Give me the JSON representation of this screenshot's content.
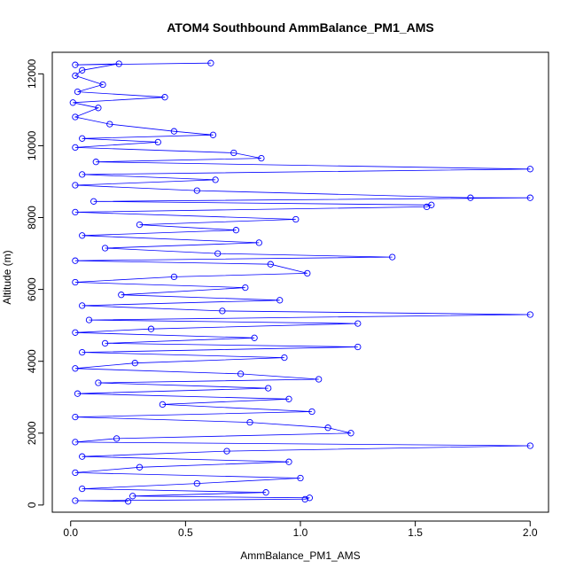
{
  "chart_data": {
    "type": "scatter",
    "title": "ATOM4 Southbound AmmBalance_PM1_AMS",
    "xlabel": "AmmBalance_PM1_AMS",
    "ylabel": "Altitude (m)",
    "xlim": [
      -0.08,
      2.08
    ],
    "ylim": [
      -200,
      12600
    ],
    "x_ticks": [
      0,
      0.5,
      1,
      1.5,
      2
    ],
    "x_tick_labels": [
      "0.0",
      "0.5",
      "1.0",
      "1.5",
      "2.0"
    ],
    "y_ticks": [
      0,
      2000,
      4000,
      6000,
      8000,
      10000,
      12000
    ],
    "y_tick_labels": [
      "0",
      "2000",
      "4000",
      "6000",
      "8000",
      "10000",
      "12000"
    ],
    "marker": "open-circle",
    "connected": true,
    "series_color": "#0000ff",
    "grid": false,
    "series": [
      {
        "points": [
          [
            0.61,
            12300
          ],
          [
            0.02,
            12250
          ],
          [
            0.21,
            12280
          ],
          [
            0.05,
            12100
          ],
          [
            0.02,
            11950
          ],
          [
            0.14,
            11700
          ],
          [
            0.03,
            11500
          ],
          [
            0.41,
            11350
          ],
          [
            0.01,
            11200
          ],
          [
            0.12,
            11050
          ],
          [
            0.02,
            10800
          ],
          [
            0.17,
            10600
          ],
          [
            0.45,
            10400
          ],
          [
            0.62,
            10300
          ],
          [
            0.05,
            10200
          ],
          [
            0.38,
            10100
          ],
          [
            0.02,
            9950
          ],
          [
            0.71,
            9800
          ],
          [
            0.83,
            9650
          ],
          [
            0.11,
            9550
          ],
          [
            2.0,
            9350
          ],
          [
            0.05,
            9200
          ],
          [
            0.63,
            9050
          ],
          [
            0.02,
            8900
          ],
          [
            0.55,
            8750
          ],
          [
            1.74,
            8550
          ],
          [
            2.0,
            8550
          ],
          [
            0.1,
            8450
          ],
          [
            1.57,
            8350
          ],
          [
            1.55,
            8300
          ],
          [
            0.02,
            8150
          ],
          [
            0.98,
            7950
          ],
          [
            0.3,
            7800
          ],
          [
            0.72,
            7650
          ],
          [
            0.05,
            7500
          ],
          [
            0.82,
            7300
          ],
          [
            0.15,
            7150
          ],
          [
            0.64,
            7000
          ],
          [
            1.4,
            6900
          ],
          [
            0.02,
            6800
          ],
          [
            0.87,
            6700
          ],
          [
            1.03,
            6450
          ],
          [
            0.45,
            6350
          ],
          [
            0.02,
            6200
          ],
          [
            0.76,
            6050
          ],
          [
            0.22,
            5850
          ],
          [
            0.91,
            5700
          ],
          [
            0.05,
            5550
          ],
          [
            0.66,
            5400
          ],
          [
            2.0,
            5300
          ],
          [
            0.08,
            5150
          ],
          [
            1.25,
            5050
          ],
          [
            0.35,
            4900
          ],
          [
            0.02,
            4800
          ],
          [
            0.8,
            4650
          ],
          [
            0.15,
            4500
          ],
          [
            1.25,
            4400
          ],
          [
            0.05,
            4250
          ],
          [
            0.93,
            4100
          ],
          [
            0.28,
            3950
          ],
          [
            0.02,
            3800
          ],
          [
            0.74,
            3650
          ],
          [
            1.08,
            3500
          ],
          [
            0.12,
            3400
          ],
          [
            0.86,
            3250
          ],
          [
            0.03,
            3100
          ],
          [
            0.95,
            2950
          ],
          [
            0.4,
            2800
          ],
          [
            1.05,
            2600
          ],
          [
            0.02,
            2450
          ],
          [
            0.78,
            2300
          ],
          [
            1.12,
            2150
          ],
          [
            1.22,
            2000
          ],
          [
            0.2,
            1850
          ],
          [
            0.02,
            1750
          ],
          [
            2.0,
            1650
          ],
          [
            0.68,
            1500
          ],
          [
            0.05,
            1350
          ],
          [
            0.95,
            1200
          ],
          [
            0.3,
            1050
          ],
          [
            0.02,
            900
          ],
          [
            1.0,
            750
          ],
          [
            0.55,
            600
          ],
          [
            0.05,
            450
          ],
          [
            0.85,
            350
          ],
          [
            0.27,
            250
          ],
          [
            1.04,
            200
          ],
          [
            1.02,
            160
          ],
          [
            0.02,
            120
          ],
          [
            0.25,
            100
          ]
        ]
      }
    ]
  }
}
